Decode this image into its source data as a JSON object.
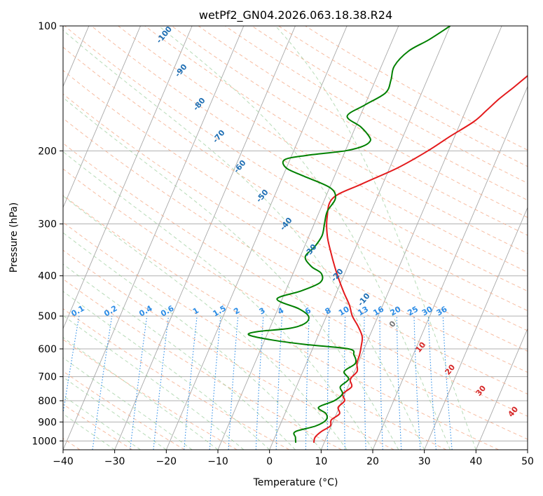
{
  "chart_data": {
    "type": "line",
    "title": "wetPf2_GN04.2026.063.18.38.R24",
    "xlabel": "Temperature (°C)",
    "ylabel": "Pressure (hPa)",
    "xlim": [
      -40,
      50
    ],
    "ylim": [
      1050,
      100
    ],
    "y_scale": "log",
    "grid": true,
    "x_ticks": [
      "−40",
      "−30",
      "−20",
      "−10",
      "0",
      "10",
      "20",
      "30",
      "40",
      "50"
    ],
    "y_ticks": [
      "1000",
      "900",
      "800",
      "700",
      "600",
      "500",
      "400",
      "300",
      "200",
      "100"
    ],
    "dry_adiabat_labels": [
      "-100",
      "-90",
      "-80",
      "-70",
      "-60",
      "-50",
      "-40",
      "-30",
      "-20",
      "-10",
      "0",
      "10",
      "20",
      "30",
      "40"
    ],
    "mixing_ratio_labels": [
      "0.1",
      "0.2",
      "0.4",
      "0.6",
      "1",
      "1.5",
      "2",
      "3",
      "4",
      "6",
      "8",
      "10",
      "13",
      "16",
      "20",
      "25",
      "30",
      "36"
    ],
    "series": [
      {
        "color": "#e31a1c",
        "pressure": [
          1010,
          980,
          950,
          920,
          890,
          860,
          830,
          800,
          770,
          740,
          710,
          680,
          650,
          620,
          590,
          560,
          530,
          500,
          470,
          440,
          410,
          380,
          350,
          320,
          290,
          260,
          240,
          220,
          200,
          185,
          170,
          160,
          150,
          140,
          130,
          120,
          110,
          100
        ],
        "values": [
          8.0,
          7.8,
          8.5,
          9.8,
          9.5,
          10.6,
          9.8,
          10.5,
          9.6,
          10.7,
          9.8,
          10.5,
          9.8,
          9.6,
          9.2,
          8.6,
          7.0,
          5.0,
          3.5,
          1.5,
          -0.5,
          -2.5,
          -4.5,
          -6.5,
          -8.0,
          -8.5,
          -4.0,
          1.5,
          6.0,
          9.0,
          12.5,
          14.0,
          15.5,
          17.5,
          19.5,
          21.5,
          22.5,
          26.0
        ]
      },
      {
        "color": "#008000",
        "pressure": [
          1010,
          980,
          950,
          920,
          890,
          860,
          830,
          800,
          770,
          740,
          710,
          680,
          650,
          620,
          600,
          585,
          570,
          555,
          545,
          535,
          520,
          500,
          480,
          455,
          435,
          415,
          395,
          380,
          360,
          340,
          320,
          300,
          280,
          260,
          245,
          230,
          220,
          210,
          205,
          200,
          195,
          190,
          185,
          175,
          165,
          155,
          145,
          135,
          125,
          115,
          108,
          100
        ],
        "values": [
          4.5,
          4.0,
          3.5,
          7.0,
          8.5,
          8.0,
          6.0,
          8.5,
          9.5,
          8.5,
          9.5,
          8.0,
          9.5,
          8.5,
          7.0,
          -2.0,
          -9.0,
          -13.5,
          -12.0,
          -6.0,
          -3.5,
          -3.5,
          -6.0,
          -11.0,
          -7.0,
          -4.0,
          -4.5,
          -7.0,
          -9.0,
          -8.0,
          -7.5,
          -8.0,
          -8.5,
          -8.0,
          -10.0,
          -16.0,
          -20.0,
          -21.0,
          -17.0,
          -10.0,
          -7.0,
          -6.0,
          -6.5,
          -9.0,
          -12.5,
          -10.0,
          -7.0,
          -7.0,
          -7.5,
          -6.0,
          -3.0,
          0.0
        ]
      }
    ]
  }
}
